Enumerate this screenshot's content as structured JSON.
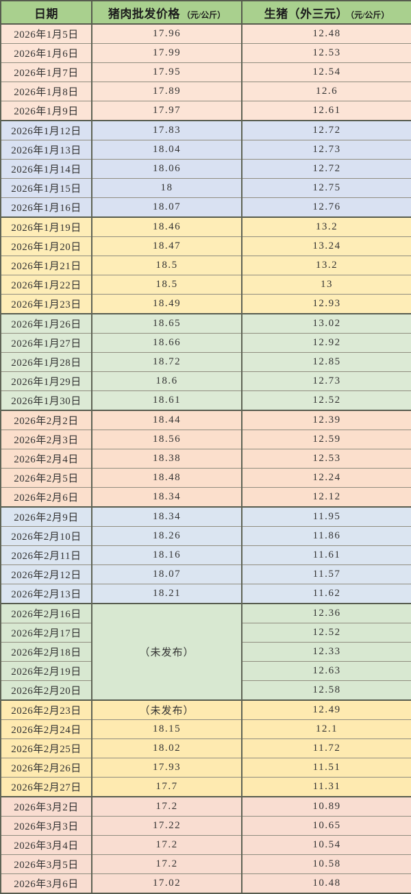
{
  "header": {
    "columns": [
      {
        "title": "日期",
        "unit": ""
      },
      {
        "title": "猪肉批发价格",
        "unit": "（元/公斤）"
      },
      {
        "title": "生猪（外三元）",
        "unit": "（元/公斤）"
      }
    ]
  },
  "colors": {
    "header_bg": "#a9d08e",
    "border_major": "#565b4e",
    "border_minor": "#908d7f",
    "text": "#323232"
  },
  "chart_data": {
    "type": "table",
    "columns": [
      "日期",
      "猪肉批发价格（元/公斤）",
      "生猪（外三元）（元/公斤）"
    ],
    "unpublished_label": "（未发布）",
    "week_groups": [
      {
        "color": "#fce4d6",
        "rows": [
          [
            "2026年1月5日",
            "17.96",
            "12.48"
          ],
          [
            "2026年1月6日",
            "17.99",
            "12.53"
          ],
          [
            "2026年1月7日",
            "17.95",
            "12.54"
          ],
          [
            "2026年1月8日",
            "17.89",
            "12.6"
          ],
          [
            "2026年1月9日",
            "17.97",
            "12.61"
          ]
        ]
      },
      {
        "color": "#d9e1f2",
        "rows": [
          [
            "2026年1月12日",
            "17.83",
            "12.72"
          ],
          [
            "2026年1月13日",
            "18.04",
            "12.73"
          ],
          [
            "2026年1月14日",
            "18.06",
            "12.72"
          ],
          [
            "2026年1月15日",
            "18",
            "12.75"
          ],
          [
            "2026年1月16日",
            "18.07",
            "12.76"
          ]
        ]
      },
      {
        "color": "#feedb7",
        "rows": [
          [
            "2026年1月19日",
            "18.46",
            "13.2"
          ],
          [
            "2026年1月20日",
            "18.47",
            "13.24"
          ],
          [
            "2026年1月21日",
            "18.5",
            "13.2"
          ],
          [
            "2026年1月22日",
            "18.5",
            "13"
          ],
          [
            "2026年1月23日",
            "18.49",
            "12.93"
          ]
        ]
      },
      {
        "color": "#dcead5",
        "rows": [
          [
            "2026年1月26日",
            "18.65",
            "13.02"
          ],
          [
            "2026年1月27日",
            "18.66",
            "12.92"
          ],
          [
            "2026年1月28日",
            "18.72",
            "12.85"
          ],
          [
            "2026年1月29日",
            "18.6",
            "12.73"
          ],
          [
            "2026年1月30日",
            "18.61",
            "12.52"
          ]
        ]
      },
      {
        "color": "#fbdfcc",
        "rows": [
          [
            "2026年2月2日",
            "18.44",
            "12.39"
          ],
          [
            "2026年2月3日",
            "18.56",
            "12.59"
          ],
          [
            "2026年2月4日",
            "18.38",
            "12.53"
          ],
          [
            "2026年2月5日",
            "18.48",
            "12.24"
          ],
          [
            "2026年2月6日",
            "18.34",
            "12.12"
          ]
        ]
      },
      {
        "color": "#dbe5f1",
        "rows": [
          [
            "2026年2月9日",
            "18.34",
            "11.95"
          ],
          [
            "2026年2月10日",
            "18.26",
            "11.86"
          ],
          [
            "2026年2月11日",
            "18.16",
            "11.61"
          ],
          [
            "2026年2月12日",
            "18.07",
            "11.57"
          ],
          [
            "2026年2月13日",
            "18.21",
            "11.62"
          ]
        ]
      },
      {
        "color": "#d8e8d1",
        "merged_pork": "（未发布）",
        "rows": [
          [
            "2026年2月16日",
            null,
            "12.36"
          ],
          [
            "2026年2月17日",
            null,
            "12.52"
          ],
          [
            "2026年2月18日",
            null,
            "12.33"
          ],
          [
            "2026年2月19日",
            null,
            "12.63"
          ],
          [
            "2026年2月20日",
            null,
            "12.58"
          ]
        ]
      },
      {
        "color": "#feeab0",
        "rows": [
          [
            "2026年2月23日",
            "（未发布）",
            "12.49"
          ],
          [
            "2026年2月24日",
            "18.15",
            "12.1"
          ],
          [
            "2026年2月25日",
            "18.02",
            "11.72"
          ],
          [
            "2026年2月26日",
            "17.93",
            "11.51"
          ],
          [
            "2026年2月27日",
            "17.7",
            "11.31"
          ]
        ]
      },
      {
        "color": "#f9ddd1",
        "rows": [
          [
            "2026年3月2日",
            "17.2",
            "10.89"
          ],
          [
            "2026年3月3日",
            "17.22",
            "10.65"
          ],
          [
            "2026年3月4日",
            "17.2",
            "10.54"
          ],
          [
            "2026年3月5日",
            "17.2",
            "10.58"
          ],
          [
            "2026年3月6日",
            "17.02",
            "10.48"
          ]
        ]
      }
    ]
  }
}
